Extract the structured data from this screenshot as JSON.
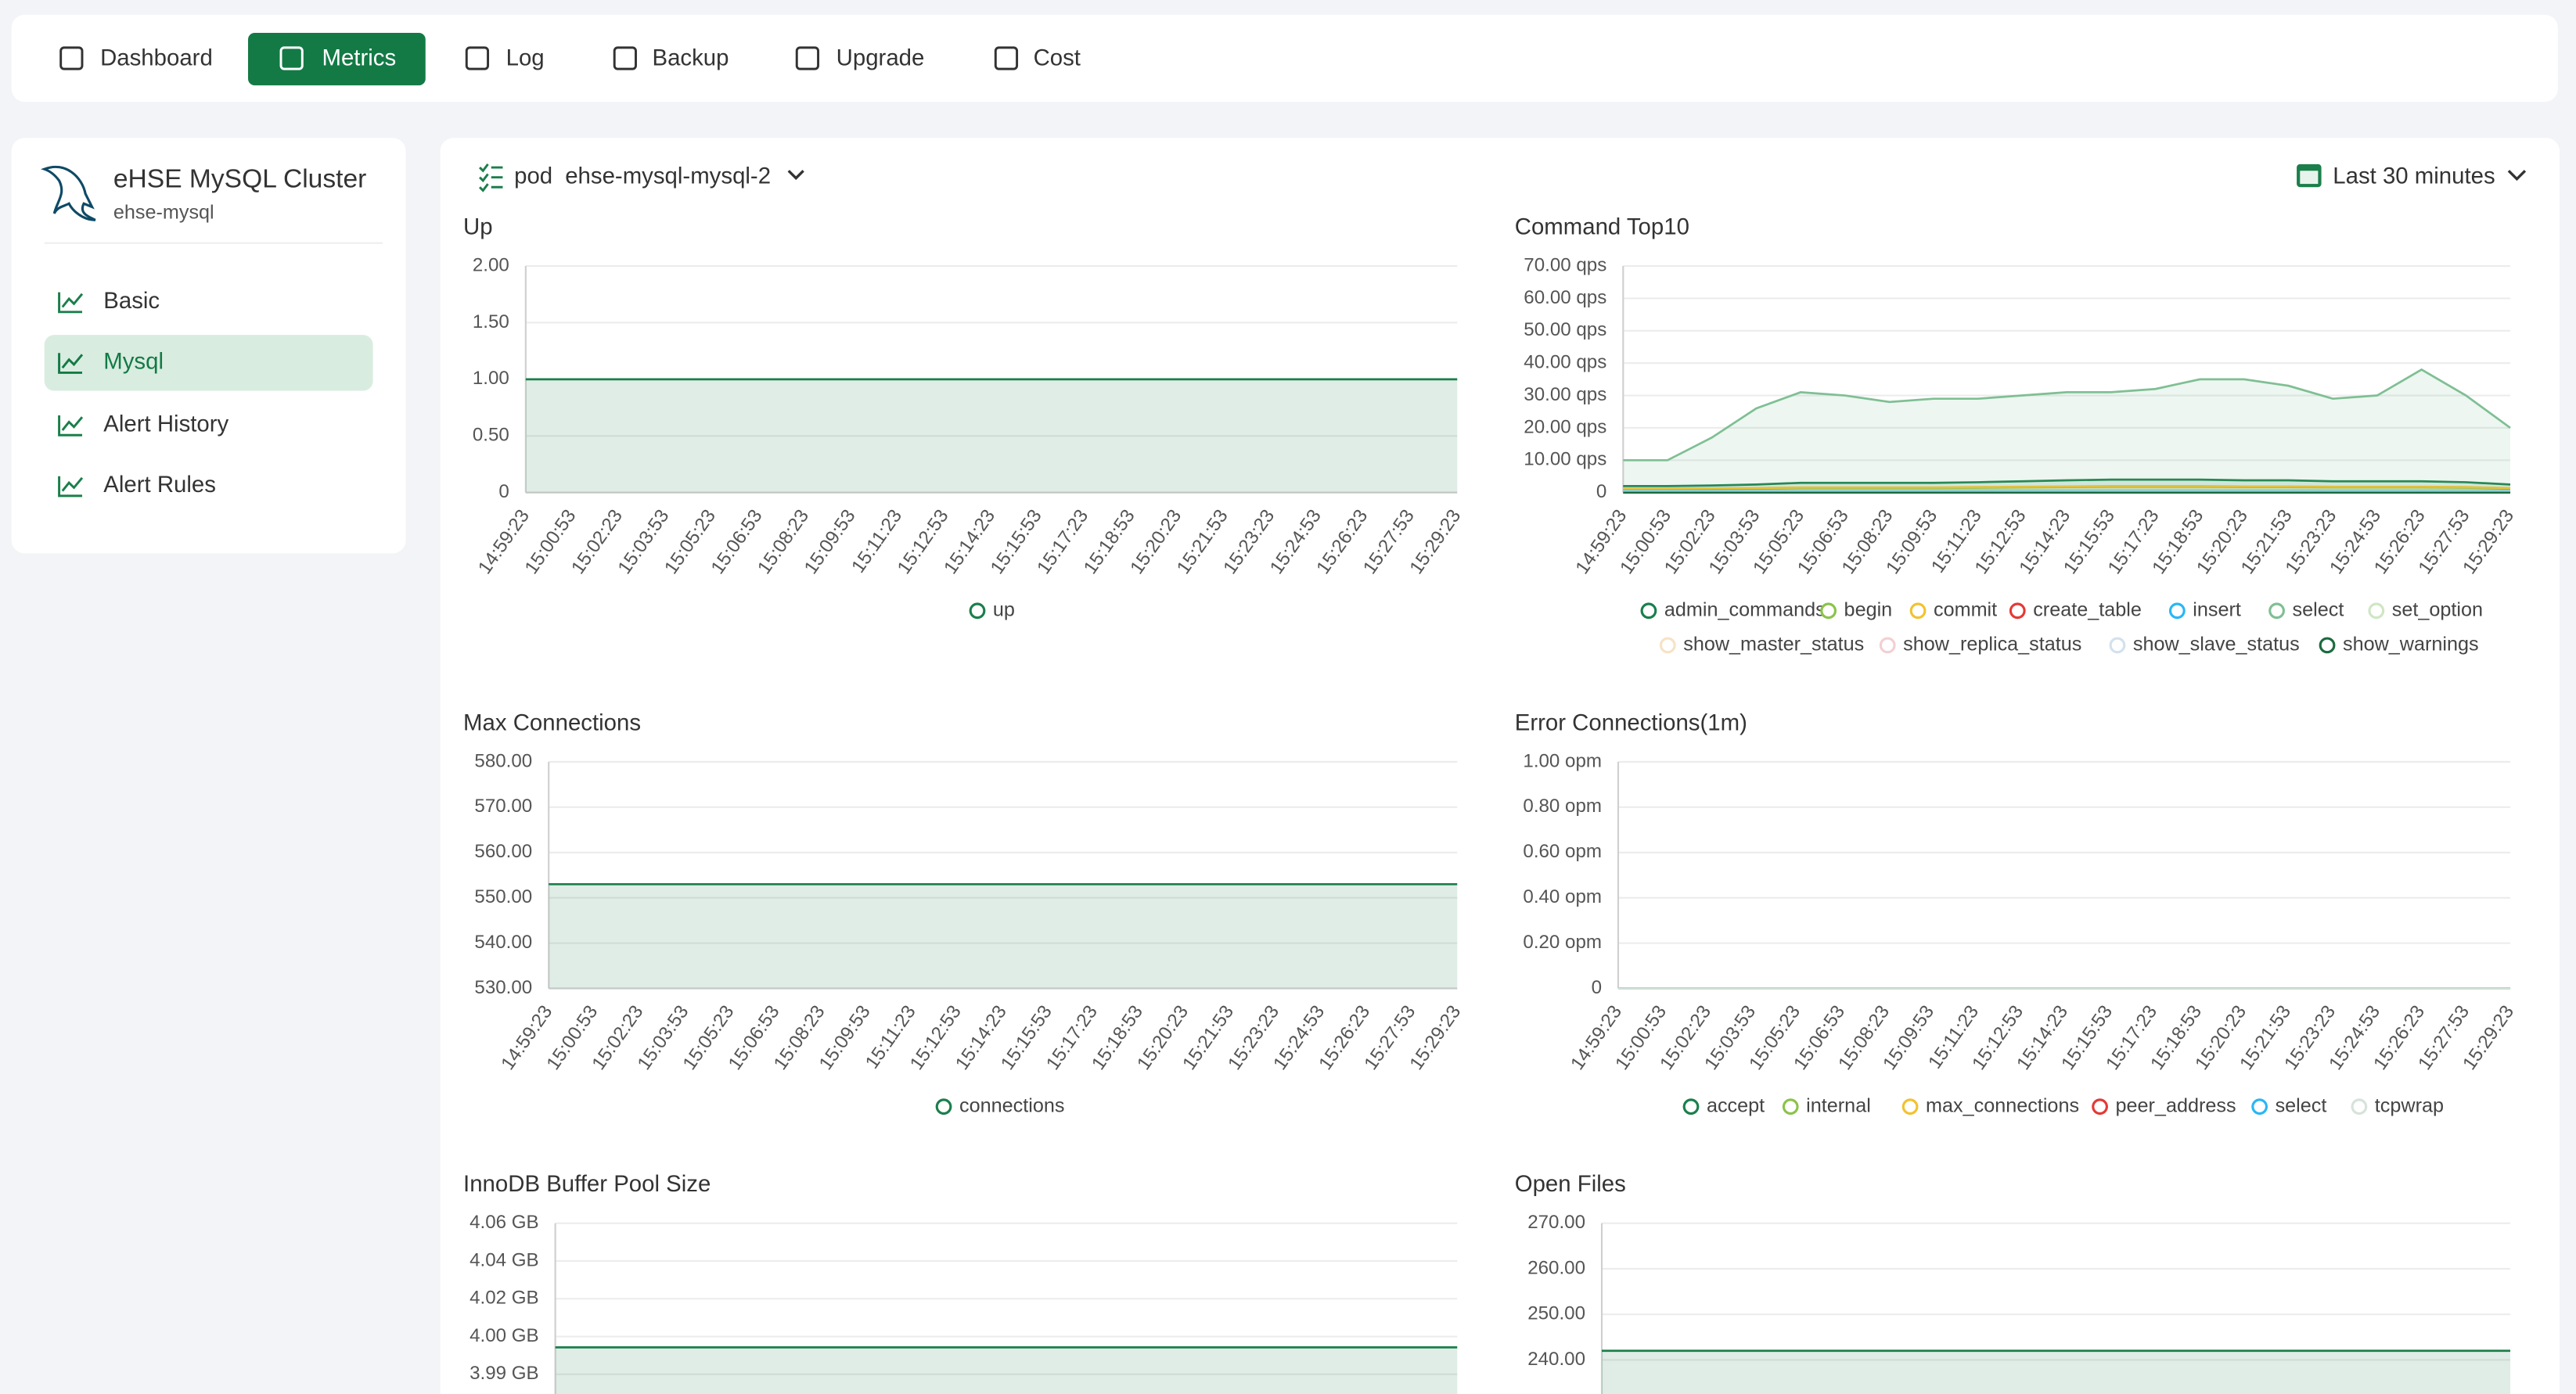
{
  "nav": {
    "items": [
      "Dashboard",
      "Metrics",
      "Log",
      "Backup",
      "Upgrade",
      "Cost"
    ],
    "active": "Metrics"
  },
  "sidebar": {
    "title": "eHSE MySQL Cluster",
    "subtitle": "ehse-mysql",
    "items": [
      "Basic",
      "Mysql",
      "Alert History",
      "Alert Rules"
    ],
    "active": "Mysql"
  },
  "toolbar": {
    "filter_label": "pod",
    "filter_value": "ehse-mysql-mysql-2",
    "time_range": "Last 30 minutes"
  },
  "chart_data": [
    {
      "type": "area",
      "title": "Up",
      "categories": [
        "14:59:23",
        "15:00:53",
        "15:02:23",
        "15:03:53",
        "15:05:23",
        "15:06:53",
        "15:08:23",
        "15:09:53",
        "15:11:23",
        "15:12:53",
        "15:14:23",
        "15:15:53",
        "15:17:23",
        "15:18:53",
        "15:20:23",
        "15:21:53",
        "15:23:23",
        "15:24:53",
        "15:26:23",
        "15:27:53",
        "15:29:23"
      ],
      "ylim": [
        0,
        2
      ],
      "yticks": [
        0,
        {
          "value": 0.5,
          "label": "0.50"
        },
        {
          "value": 1,
          "label": "1.00"
        },
        {
          "value": 1.5,
          "label": "1.50"
        },
        {
          "value": 2,
          "label": "2.00"
        }
      ],
      "grid": true,
      "series": [
        {
          "name": "up",
          "color": "#1a7f4b",
          "values": [
            1,
            1,
            1,
            1,
            1,
            1,
            1,
            1,
            1,
            1,
            1,
            1,
            1,
            1,
            1,
            1,
            1,
            1,
            1,
            1,
            1
          ]
        }
      ]
    },
    {
      "type": "area",
      "title": "Command Top10",
      "categories": [
        "14:59:23",
        "15:00:53",
        "15:02:23",
        "15:03:53",
        "15:05:23",
        "15:06:53",
        "15:08:23",
        "15:09:53",
        "15:11:23",
        "15:12:53",
        "15:14:23",
        "15:15:53",
        "15:17:23",
        "15:18:53",
        "15:20:23",
        "15:21:53",
        "15:23:23",
        "15:24:53",
        "15:26:23",
        "15:27:53",
        "15:29:23"
      ],
      "ylim": [
        0,
        70
      ],
      "yticks": [
        0,
        {
          "value": 10,
          "label": "10.00 qps"
        },
        {
          "value": 20,
          "label": "20.00 qps"
        },
        {
          "value": 30,
          "label": "30.00 qps"
        },
        {
          "value": 40,
          "label": "40.00 qps"
        },
        {
          "value": 50,
          "label": "50.00 qps"
        },
        {
          "value": 60,
          "label": "60.00 qps"
        },
        {
          "value": 70,
          "label": "70.00 qps"
        }
      ],
      "grid": true,
      "series": [
        {
          "name": "admin_commands",
          "color": "#1a7f4b",
          "values": [
            2,
            2,
            2.2,
            2.5,
            3,
            3,
            3,
            3,
            3.2,
            3.5,
            3.8,
            4,
            4,
            4,
            3.8,
            3.8,
            3.5,
            3.5,
            3.5,
            3.2,
            2.5
          ]
        },
        {
          "name": "begin",
          "color": "#8bc34a",
          "values": [
            1,
            1,
            1.1,
            1.2,
            1.4,
            1.4,
            1.4,
            1.4,
            1.5,
            1.6,
            1.7,
            1.8,
            1.8,
            1.8,
            1.7,
            1.7,
            1.6,
            1.6,
            1.6,
            1.5,
            1.2
          ]
        },
        {
          "name": "commit",
          "color": "#f2c230",
          "values": [
            1.2,
            1.2,
            1.3,
            1.4,
            1.6,
            1.6,
            1.6,
            1.6,
            1.7,
            1.8,
            1.9,
            2,
            2,
            2,
            1.9,
            1.9,
            1.8,
            1.8,
            1.8,
            1.7,
            1.4
          ]
        },
        {
          "name": "create_table",
          "color": "#e53935",
          "values": [
            0,
            0,
            0,
            0,
            0,
            0,
            0,
            0,
            0,
            0,
            0,
            0,
            0,
            0,
            0,
            0,
            0,
            0,
            0,
            0,
            0
          ]
        },
        {
          "name": "insert",
          "color": "#29b6f6",
          "values": [
            0.5,
            0.5,
            0.5,
            0.5,
            0.5,
            0.5,
            0.5,
            0.5,
            0.5,
            0.5,
            0.5,
            0.5,
            0.5,
            0.5,
            0.5,
            0.5,
            0.5,
            0.5,
            0.5,
            0.5,
            0.5
          ]
        },
        {
          "name": "select",
          "color": "#7fbf94",
          "values": [
            10,
            10,
            17,
            26,
            31,
            30,
            28,
            29,
            29,
            30,
            31,
            31,
            32,
            35,
            35,
            33,
            29,
            30,
            38,
            30,
            20
          ]
        },
        {
          "name": "set_option",
          "color": "#cfe6c4",
          "values": [
            0.3,
            0.3,
            0.3,
            0.3,
            0.3,
            0.3,
            0.3,
            0.3,
            0.3,
            0.3,
            0.3,
            0.3,
            0.3,
            0.3,
            0.3,
            0.3,
            0.3,
            0.3,
            0.3,
            0.3,
            0.3
          ]
        },
        {
          "name": "show_master_status",
          "color": "#f6e3c6",
          "values": [
            0.1,
            0.1,
            0.1,
            0.1,
            0.1,
            0.1,
            0.1,
            0.1,
            0.1,
            0.1,
            0.1,
            0.1,
            0.1,
            0.1,
            0.1,
            0.1,
            0.1,
            0.1,
            0.1,
            0.1,
            0.1
          ]
        },
        {
          "name": "show_replica_status",
          "color": "#f3cfd3",
          "values": [
            0.1,
            0.1,
            0.1,
            0.1,
            0.1,
            0.1,
            0.1,
            0.1,
            0.1,
            0.1,
            0.1,
            0.1,
            0.1,
            0.1,
            0.1,
            0.1,
            0.1,
            0.1,
            0.1,
            0.1,
            0.1
          ]
        },
        {
          "name": "show_slave_status",
          "color": "#d3e1ee",
          "values": [
            0.1,
            0.1,
            0.1,
            0.1,
            0.1,
            0.1,
            0.1,
            0.1,
            0.1,
            0.1,
            0.1,
            0.1,
            0.1,
            0.1,
            0.1,
            0.1,
            0.1,
            0.1,
            0.1,
            0.1,
            0.1
          ]
        },
        {
          "name": "show_warnings",
          "color": "#1c6b3e",
          "values": [
            0,
            0,
            0,
            0,
            0,
            0,
            0,
            0,
            0,
            0,
            0,
            0,
            0,
            0,
            0,
            0,
            0,
            0,
            0,
            0,
            0
          ]
        }
      ]
    },
    {
      "type": "area",
      "title": "Max Connections",
      "categories": [
        "14:59:23",
        "15:00:53",
        "15:02:23",
        "15:03:53",
        "15:05:23",
        "15:06:53",
        "15:08:23",
        "15:09:53",
        "15:11:23",
        "15:12:53",
        "15:14:23",
        "15:15:53",
        "15:17:23",
        "15:18:53",
        "15:20:23",
        "15:21:53",
        "15:23:23",
        "15:24:53",
        "15:26:23",
        "15:27:53",
        "15:29:23"
      ],
      "ylim": [
        530,
        580
      ],
      "yticks": [
        {
          "value": 530,
          "label": "530.00"
        },
        {
          "value": 540,
          "label": "540.00"
        },
        {
          "value": 550,
          "label": "550.00"
        },
        {
          "value": 560,
          "label": "560.00"
        },
        {
          "value": 570,
          "label": "570.00"
        },
        {
          "value": 580,
          "label": "580.00"
        }
      ],
      "grid": true,
      "series": [
        {
          "name": "connections",
          "color": "#1a7f4b",
          "values": [
            553,
            553,
            553,
            553,
            553,
            553,
            553,
            553,
            553,
            553,
            553,
            553,
            553,
            553,
            553,
            553,
            553,
            553,
            553,
            553,
            553
          ]
        }
      ]
    },
    {
      "type": "area",
      "title": "Error Connections(1m)",
      "categories": [
        "14:59:23",
        "15:00:53",
        "15:02:23",
        "15:03:53",
        "15:05:23",
        "15:06:53",
        "15:08:23",
        "15:09:53",
        "15:11:23",
        "15:12:53",
        "15:14:23",
        "15:15:53",
        "15:17:23",
        "15:18:53",
        "15:20:23",
        "15:21:53",
        "15:23:23",
        "15:24:53",
        "15:26:23",
        "15:27:53",
        "15:29:23"
      ],
      "ylim": [
        0,
        1
      ],
      "yticks": [
        0,
        {
          "value": 0.2,
          "label": "0.20 opm"
        },
        {
          "value": 0.4,
          "label": "0.40 opm"
        },
        {
          "value": 0.6,
          "label": "0.60 opm"
        },
        {
          "value": 0.8,
          "label": "0.80 opm"
        },
        {
          "value": 1,
          "label": "1.00 opm"
        }
      ],
      "grid": true,
      "series": [
        {
          "name": "accept",
          "color": "#1a7f4b",
          "values": [
            0,
            0,
            0,
            0,
            0,
            0,
            0,
            0,
            0,
            0,
            0,
            0,
            0,
            0,
            0,
            0,
            0,
            0,
            0,
            0,
            0
          ]
        },
        {
          "name": "internal",
          "color": "#8bc34a",
          "values": [
            0,
            0,
            0,
            0,
            0,
            0,
            0,
            0,
            0,
            0,
            0,
            0,
            0,
            0,
            0,
            0,
            0,
            0,
            0,
            0,
            0
          ]
        },
        {
          "name": "max_connections",
          "color": "#f2c230",
          "values": [
            0,
            0,
            0,
            0,
            0,
            0,
            0,
            0,
            0,
            0,
            0,
            0,
            0,
            0,
            0,
            0,
            0,
            0,
            0,
            0,
            0
          ]
        },
        {
          "name": "peer_address",
          "color": "#e53935",
          "values": [
            0,
            0,
            0,
            0,
            0,
            0,
            0,
            0,
            0,
            0,
            0,
            0,
            0,
            0,
            0,
            0,
            0,
            0,
            0,
            0,
            0
          ]
        },
        {
          "name": "select",
          "color": "#29b6f6",
          "values": [
            0,
            0,
            0,
            0,
            0,
            0,
            0,
            0,
            0,
            0,
            0,
            0,
            0,
            0,
            0,
            0,
            0,
            0,
            0,
            0,
            0
          ]
        },
        {
          "name": "tcpwrap",
          "color": "#d6e3da",
          "values": [
            0,
            0,
            0,
            0,
            0,
            0,
            0,
            0,
            0,
            0,
            0,
            0,
            0,
            0,
            0,
            0,
            0,
            0,
            0,
            0,
            0
          ]
        }
      ]
    },
    {
      "type": "area",
      "title": "InnoDB Buffer Pool Size",
      "ylim": [
        3.9505,
        4.0555
      ],
      "yticks": [
        {
          "value": 3.9855,
          "label": "3.99 GB"
        },
        {
          "value": 4.003,
          "label": "4.00 GB"
        },
        {
          "value": 4.0205,
          "label": "4.02 GB"
        },
        {
          "value": 4.038,
          "label": "4.04 GB"
        },
        {
          "value": 4.0555,
          "label": "4.06 GB"
        }
      ],
      "grid": true,
      "series": [
        {
          "color": "#1a7f4b",
          "values": [
            3.998,
            3.998,
            3.998,
            3.998,
            3.998,
            3.998,
            3.998,
            3.998,
            3.998,
            3.998,
            3.998,
            3.998,
            3.998,
            3.998,
            3.998,
            3.998,
            3.998,
            3.998,
            3.998,
            3.998,
            3.998
          ]
        }
      ]
    },
    {
      "type": "area",
      "title": "Open Files",
      "ylim": [
        230,
        270
      ],
      "yticks": [
        {
          "value": 240,
          "label": "240.00"
        },
        {
          "value": 250,
          "label": "250.00"
        },
        {
          "value": 260,
          "label": "260.00"
        },
        {
          "value": 270,
          "label": "270.00"
        }
      ],
      "grid": true,
      "series": [
        {
          "color": "#1a7f4b",
          "values": [
            242,
            242,
            242,
            242,
            242,
            242,
            242,
            242,
            242,
            242,
            242,
            242,
            242,
            242,
            242,
            242,
            242,
            242,
            242,
            242,
            242
          ]
        }
      ]
    }
  ]
}
